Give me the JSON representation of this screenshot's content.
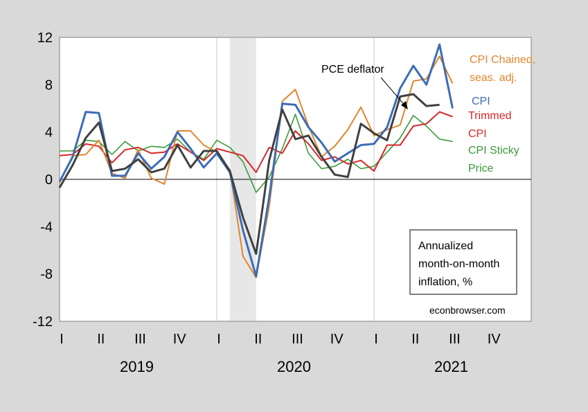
{
  "colors": {
    "background": "#d9d9d9",
    "plot_area": "#ffffff",
    "recession_shade": "#e7e7e7",
    "cpi": "#3b6cb7",
    "cpi_chained": "#e0852e",
    "pce": "#404040",
    "trimmed": "#d62728",
    "sticky": "#3a9a3a"
  },
  "chart_data": {
    "type": "line",
    "title": "",
    "xlabel": "",
    "ylabel": "",
    "x": [
      "2019-01",
      "2019-02",
      "2019-03",
      "2019-04",
      "2019-05",
      "2019-06",
      "2019-07",
      "2019-08",
      "2019-09",
      "2019-10",
      "2019-11",
      "2019-12",
      "2020-01",
      "2020-02",
      "2020-03",
      "2020-04",
      "2020-05",
      "2020-06",
      "2020-07",
      "2020-08",
      "2020-09",
      "2020-10",
      "2020-11",
      "2020-12",
      "2021-01",
      "2021-02",
      "2021-03",
      "2021-04",
      "2021-05",
      "2021-06",
      "2021-07"
    ],
    "ylim": [
      -12,
      12
    ],
    "y_ticks": [
      "12",
      "8",
      "4",
      "0",
      "-4",
      "-8",
      "-12"
    ],
    "y_tick_values": [
      12,
      8,
      4,
      0,
      -4,
      -8,
      -12
    ],
    "quarter_labels": [
      "I",
      "II",
      "III",
      "IV",
      "I",
      "II",
      "III",
      "IV",
      "I",
      "II",
      "III",
      "IV"
    ],
    "year_labels": [
      "2019",
      "2020",
      "2021"
    ],
    "shaded_period": [
      "2020-02",
      "2020-04"
    ],
    "series": [
      {
        "name": "CPI Chained, seas. adj.",
        "key": "cpi_chained",
        "values": [
          -0.3,
          2.0,
          2.1,
          3.3,
          0.5,
          0.1,
          2.5,
          0.1,
          -0.4,
          4.1,
          4.1,
          2.9,
          2.3,
          0.8,
          -6.5,
          -8.3,
          -2.3,
          6.6,
          7.6,
          4.5,
          1.9,
          2.8,
          4.2,
          6.1,
          3.7,
          4.2,
          4.6,
          8.3,
          8.5,
          10.4,
          8.1
        ]
      },
      {
        "name": "CPI",
        "key": "cpi",
        "values": [
          -0.2,
          1.9,
          5.7,
          5.6,
          0.3,
          0.3,
          2.2,
          0.9,
          1.9,
          4.0,
          2.6,
          1.0,
          2.2,
          0.6,
          -4.3,
          -8.2,
          -1.5,
          6.4,
          6.3,
          4.4,
          3.1,
          1.5,
          2.2,
          2.9,
          3.0,
          4.4,
          7.7,
          9.6,
          8.0,
          11.4,
          6.0
        ]
      },
      {
        "name": "PCE deflator",
        "key": "pce",
        "values": [
          -0.7,
          1.2,
          3.5,
          4.8,
          0.7,
          0.9,
          1.7,
          0.6,
          0.9,
          2.9,
          1.0,
          2.4,
          2.4,
          0.7,
          -3.2,
          -6.3,
          1.6,
          5.9,
          3.4,
          3.7,
          1.9,
          0.4,
          0.2,
          4.7,
          3.9,
          3.3,
          7.0,
          7.2,
          6.2,
          6.3,
          null
        ]
      },
      {
        "name": "Trimmed CPI",
        "key": "trimmed",
        "values": [
          2.0,
          2.1,
          3.0,
          2.8,
          1.4,
          2.5,
          2.7,
          2.2,
          2.3,
          3.0,
          2.3,
          1.6,
          2.6,
          2.3,
          2.0,
          0.6,
          2.7,
          2.2,
          4.1,
          3.0,
          1.6,
          1.9,
          1.3,
          1.6,
          0.7,
          2.9,
          2.9,
          4.5,
          4.7,
          5.7,
          5.3
        ]
      },
      {
        "name": "CPI Sticky Price",
        "key": "sticky",
        "values": [
          2.4,
          2.4,
          3.3,
          3.2,
          2.1,
          3.2,
          2.4,
          2.8,
          2.7,
          3.4,
          2.3,
          1.7,
          3.3,
          2.7,
          1.5,
          -1.1,
          0.2,
          2.6,
          5.5,
          2.2,
          0.9,
          1.1,
          1.7,
          0.9,
          1.1,
          2.3,
          3.5,
          5.4,
          4.5,
          3.4,
          3.2
        ]
      }
    ],
    "legend": [
      {
        "key": "cpi_chained",
        "lines": [
          "CPI Chained,",
          "seas. adj."
        ]
      },
      {
        "key": "cpi",
        "lines": [
          "CPI"
        ]
      },
      {
        "key": "trimmed",
        "lines": [
          "Trimmed",
          "CPI"
        ]
      },
      {
        "key": "sticky",
        "lines": [
          "CPI Sticky",
          "Price"
        ]
      }
    ],
    "annotation": "PCE deflator",
    "note_box": [
      "Annualized",
      "month-on-month",
      "inflation, %"
    ],
    "source": "econbrowser.com"
  }
}
